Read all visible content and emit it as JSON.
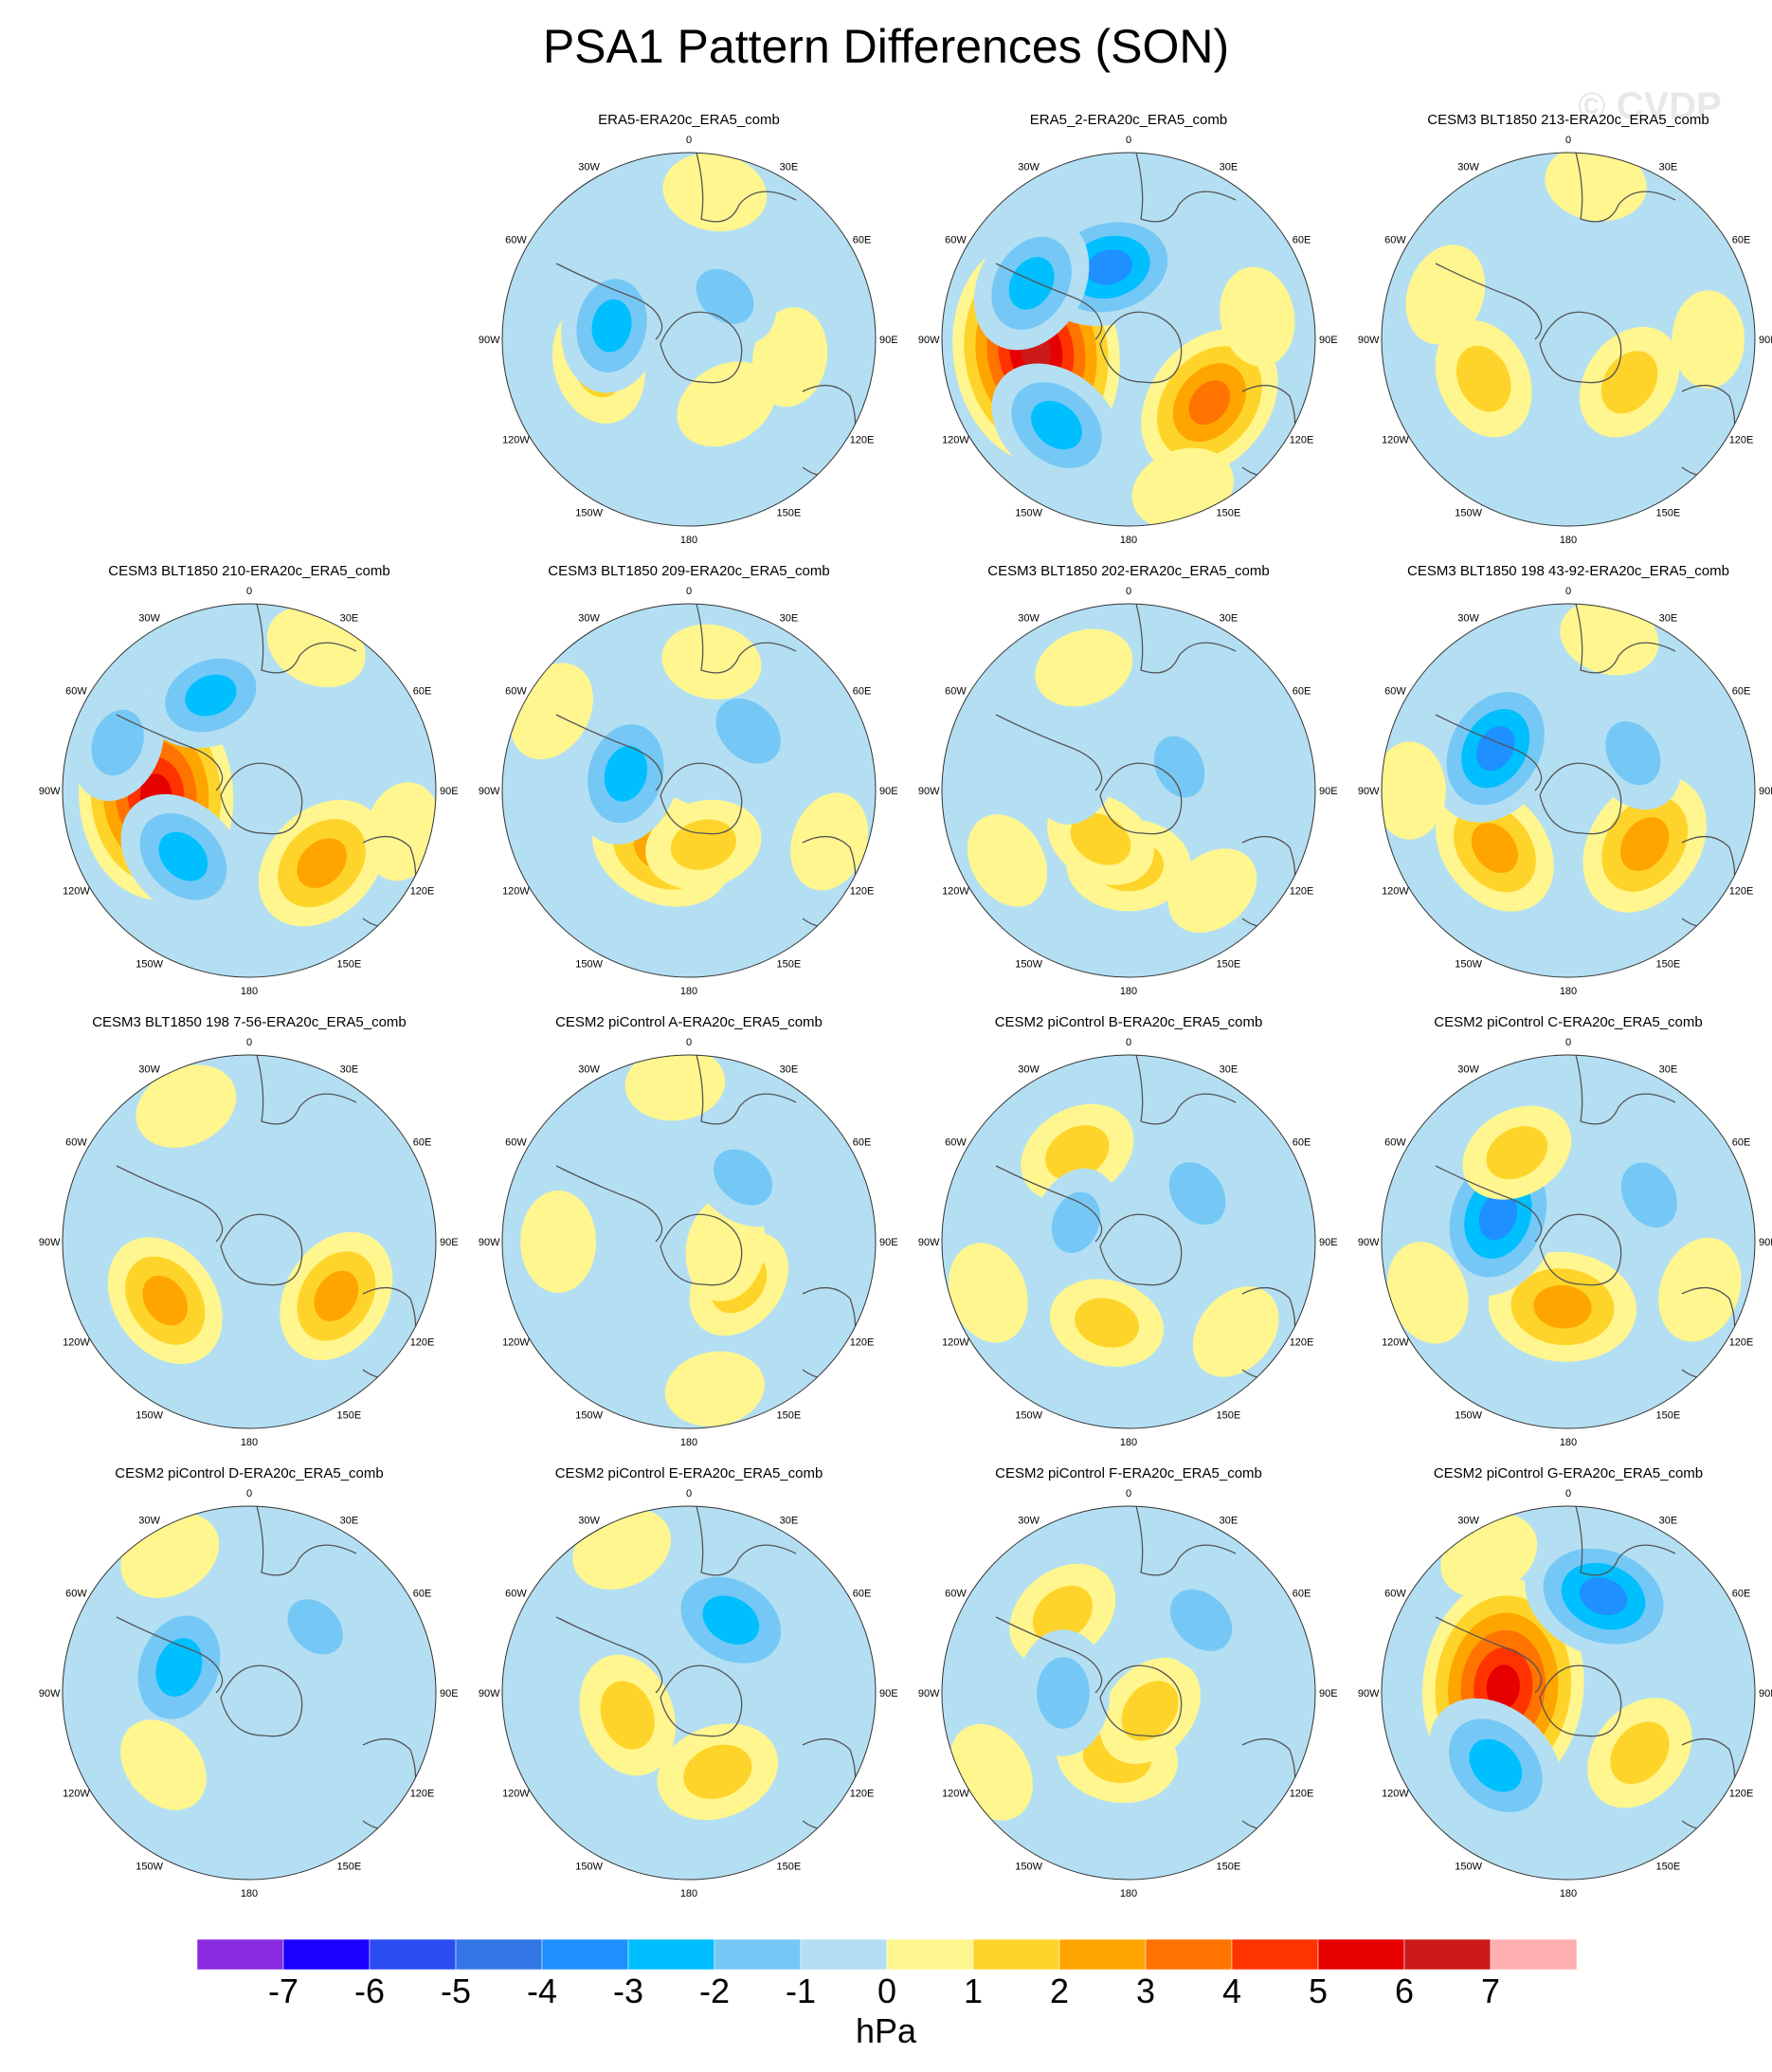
{
  "title": "PSA1 Pattern Differences (SON)",
  "watermark": "© CVDP",
  "map_labels": {
    "lon_0": "0",
    "lon_30e": "30E",
    "lon_60e": "60E",
    "lon_90e": "90E",
    "lon_120e": "120E",
    "lon_150e": "150E",
    "lon_180": "180",
    "lon_150w": "150W",
    "lon_120w": "120W",
    "lon_90w": "90W",
    "lon_60w": "60W",
    "lon_30w": "30W"
  },
  "panels": [
    {
      "title": "ERA5-ERA20c_ERA5_comb",
      "anomalies": [
        {
          "lon": 255,
          "r": 0.5,
          "v": 1.6
        },
        {
          "lon": 100,
          "r": 0.55,
          "v": 0.6
        },
        {
          "lon": 150,
          "r": 0.4,
          "v": 0.8
        },
        {
          "lon": 10,
          "r": 0.8,
          "v": 0.8
        },
        {
          "lon": 280,
          "r": 0.42,
          "v": -2.2
        },
        {
          "lon": 40,
          "r": 0.3,
          "v": -1.2
        },
        {
          "lon": 195,
          "r": 0.6,
          "v": -0.5
        }
      ]
    },
    {
      "title": "ERA5_2-ERA20c_ERA5_comb",
      "anomalies": [
        {
          "lon": 262,
          "r": 0.5,
          "v": 6.3
        },
        {
          "lon": 128,
          "r": 0.55,
          "v": 3.4
        },
        {
          "lon": 345,
          "r": 0.4,
          "v": -3.1
        },
        {
          "lon": 220,
          "r": 0.6,
          "v": -2.6
        },
        {
          "lon": 300,
          "r": 0.6,
          "v": -2.5
        },
        {
          "lon": 160,
          "r": 0.85,
          "v": 0.8
        },
        {
          "lon": 80,
          "r": 0.7,
          "v": 0.6
        }
      ]
    },
    {
      "title": "CESM3 BLT1850 213-ERA20c_ERA5_comb",
      "anomalies": [
        {
          "lon": 245,
          "r": 0.5,
          "v": 1.6
        },
        {
          "lon": 125,
          "r": 0.4,
          "v": 1.5
        },
        {
          "lon": 10,
          "r": 0.85,
          "v": 0.7
        },
        {
          "lon": 290,
          "r": 0.7,
          "v": 0.7
        },
        {
          "lon": 90,
          "r": 0.75,
          "v": 0.5
        },
        {
          "lon": 175,
          "r": 0.55,
          "v": -0.6
        }
      ]
    },
    {
      "title": "CESM3 BLT1850 210-ERA20c_ERA5_comb",
      "anomalies": [
        {
          "lon": 267,
          "r": 0.5,
          "v": 5.6
        },
        {
          "lon": 135,
          "r": 0.55,
          "v": 2.6
        },
        {
          "lon": 338,
          "r": 0.55,
          "v": -2.2
        },
        {
          "lon": 225,
          "r": 0.5,
          "v": -2.5
        },
        {
          "lon": 290,
          "r": 0.75,
          "v": -1.5
        },
        {
          "lon": 25,
          "r": 0.85,
          "v": 0.7
        },
        {
          "lon": 105,
          "r": 0.85,
          "v": 0.6
        }
      ]
    },
    {
      "title": "CESM3 BLT1850 209-ERA20c_ERA5_comb",
      "anomalies": [
        {
          "lon": 205,
          "r": 0.35,
          "v": 2.6
        },
        {
          "lon": 165,
          "r": 0.3,
          "v": 1.4
        },
        {
          "lon": 285,
          "r": 0.35,
          "v": -2.6
        },
        {
          "lon": 45,
          "r": 0.45,
          "v": -2.0
        },
        {
          "lon": 300,
          "r": 0.85,
          "v": 0.7
        },
        {
          "lon": 110,
          "r": 0.8,
          "v": 0.6
        },
        {
          "lon": 10,
          "r": 0.7,
          "v": 0.6
        }
      ]
    },
    {
      "title": "CESM3 BLT1850 202-ERA20c_ERA5_comb",
      "anomalies": [
        {
          "lon": 180,
          "r": 0.4,
          "v": 1.7
        },
        {
          "lon": 210,
          "r": 0.3,
          "v": 1.2
        },
        {
          "lon": 65,
          "r": 0.3,
          "v": -1.2
        },
        {
          "lon": 290,
          "r": 0.3,
          "v": -1.0
        },
        {
          "lon": 340,
          "r": 0.7,
          "v": 0.6
        },
        {
          "lon": 140,
          "r": 0.7,
          "v": 0.5
        },
        {
          "lon": 240,
          "r": 0.75,
          "v": 0.5
        }
      ]
    },
    {
      "title": "CESM3 BLT1850 198 43-92-ERA20c_ERA5_comb",
      "anomalies": [
        {
          "lon": 232,
          "r": 0.5,
          "v": 2.4
        },
        {
          "lon": 125,
          "r": 0.5,
          "v": 2.8
        },
        {
          "lon": 300,
          "r": 0.45,
          "v": -3.2
        },
        {
          "lon": 60,
          "r": 0.4,
          "v": -1.5
        },
        {
          "lon": 180,
          "r": 0.6,
          "v": -0.7
        },
        {
          "lon": 15,
          "r": 0.85,
          "v": 0.6
        },
        {
          "lon": 270,
          "r": 0.85,
          "v": 0.5
        }
      ]
    },
    {
      "title": "CESM3 BLT1850 198 7-56-ERA20c_ERA5_comb",
      "anomalies": [
        {
          "lon": 235,
          "r": 0.55,
          "v": 2.3
        },
        {
          "lon": 122,
          "r": 0.55,
          "v": 2.3
        },
        {
          "lon": 335,
          "r": 0.8,
          "v": 0.8
        },
        {
          "lon": 60,
          "r": 0.5,
          "v": -0.6
        },
        {
          "lon": 180,
          "r": 0.6,
          "v": -0.6
        }
      ]
    },
    {
      "title": "CESM2 piControl A-ERA20c_ERA5_comb",
      "anomalies": [
        {
          "lon": 130,
          "r": 0.35,
          "v": 1.3
        },
        {
          "lon": 100,
          "r": 0.2,
          "v": 0.9
        },
        {
          "lon": 40,
          "r": 0.45,
          "v": -1.3
        },
        {
          "lon": 270,
          "r": 0.7,
          "v": 0.7
        },
        {
          "lon": 170,
          "r": 0.8,
          "v": 0.6
        },
        {
          "lon": 355,
          "r": 0.85,
          "v": 0.6
        }
      ]
    },
    {
      "title": "CESM2 piControl B-ERA20c_ERA5_comb",
      "anomalies": [
        {
          "lon": 330,
          "r": 0.55,
          "v": 1.5
        },
        {
          "lon": 195,
          "r": 0.45,
          "v": 1.3
        },
        {
          "lon": 55,
          "r": 0.45,
          "v": -1.5
        },
        {
          "lon": 290,
          "r": 0.3,
          "v": -1.1
        },
        {
          "lon": 250,
          "r": 0.8,
          "v": 0.7
        },
        {
          "lon": 130,
          "r": 0.75,
          "v": 0.6
        }
      ]
    },
    {
      "title": "CESM2 piControl C-ERA20c_ERA5_comb",
      "anomalies": [
        {
          "lon": 185,
          "r": 0.35,
          "v": 2.8
        },
        {
          "lon": 290,
          "r": 0.4,
          "v": -3.5
        },
        {
          "lon": 60,
          "r": 0.5,
          "v": -1.6
        },
        {
          "lon": 330,
          "r": 0.55,
          "v": 1.3
        },
        {
          "lon": 110,
          "r": 0.75,
          "v": 0.9
        },
        {
          "lon": 250,
          "r": 0.8,
          "v": 0.8
        }
      ]
    },
    {
      "title": "CESM2 piControl D-ERA20c_ERA5_comb",
      "anomalies": [
        {
          "lon": 290,
          "r": 0.4,
          "v": -3.0
        },
        {
          "lon": 330,
          "r": 0.85,
          "v": 0.8
        },
        {
          "lon": 230,
          "r": 0.6,
          "v": 0.6
        },
        {
          "lon": 45,
          "r": 0.5,
          "v": -1.1
        },
        {
          "lon": 140,
          "r": 0.6,
          "v": -0.6
        }
      ]
    },
    {
      "title": "CESM2 piControl E-ERA20c_ERA5_comb",
      "anomalies": [
        {
          "lon": 250,
          "r": 0.35,
          "v": 1.7
        },
        {
          "lon": 160,
          "r": 0.45,
          "v": 1.7
        },
        {
          "lon": 30,
          "r": 0.45,
          "v": -3.0
        },
        {
          "lon": 335,
          "r": 0.85,
          "v": 0.7
        },
        {
          "lon": 100,
          "r": 0.7,
          "v": -0.6
        }
      ]
    },
    {
      "title": "CESM2 piControl F-ERA20c_ERA5_comb",
      "anomalies": [
        {
          "lon": 190,
          "r": 0.35,
          "v": 1.6
        },
        {
          "lon": 130,
          "r": 0.15,
          "v": 1.4
        },
        {
          "lon": 320,
          "r": 0.55,
          "v": 1.4
        },
        {
          "lon": 45,
          "r": 0.55,
          "v": -1.7
        },
        {
          "lon": 270,
          "r": 0.35,
          "v": -1.8
        },
        {
          "lon": 240,
          "r": 0.85,
          "v": 0.7
        }
      ]
    },
    {
      "title": "CESM2 piControl G-ERA20c_ERA5_comb",
      "anomalies": [
        {
          "lon": 275,
          "r": 0.35,
          "v": 6.0
        },
        {
          "lon": 20,
          "r": 0.55,
          "v": -3.4
        },
        {
          "lon": 225,
          "r": 0.55,
          "v": -3.0
        },
        {
          "lon": 130,
          "r": 0.5,
          "v": 1.6
        },
        {
          "lon": 80,
          "r": 0.25,
          "v": -0.8
        },
        {
          "lon": 330,
          "r": 0.85,
          "v": 0.7
        }
      ]
    }
  ],
  "colorbar": {
    "units": "hPa",
    "tick_labels": [
      "-7",
      "-6",
      "-5",
      "-4",
      "-3",
      "-2",
      "-1",
      "0",
      "1",
      "2",
      "3",
      "4",
      "5",
      "6",
      "7"
    ],
    "levels": [
      -7,
      -6,
      -5,
      -4,
      -3,
      -2,
      -1,
      0,
      1,
      2,
      3,
      4,
      5,
      6,
      7
    ],
    "colors": [
      "#8a2be2",
      "#1a00ff",
      "#2b4cf0",
      "#3377e6",
      "#1e90ff",
      "#00bfff",
      "#75c8f5",
      "#b4dff3",
      "#fff68f",
      "#ffd42a",
      "#ffa500",
      "#ff7300",
      "#ff3300",
      "#e60000",
      "#cc1a1a",
      "#ffb0b0"
    ]
  }
}
